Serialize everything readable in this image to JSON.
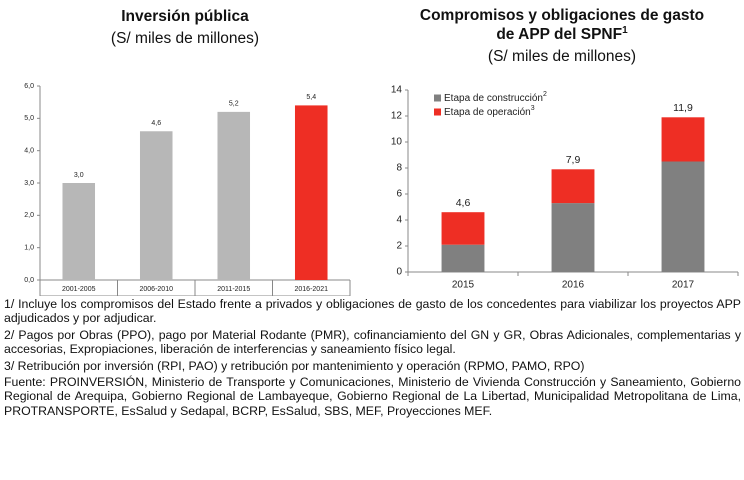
{
  "chart_data": [
    {
      "type": "bar",
      "title": [
        "Inversión pública"
      ],
      "subtitle": "(S/ miles de millones)",
      "categories": [
        "2001-2005",
        "2006-2010",
        "2011-2015",
        "2016-2021"
      ],
      "values": [
        3.0,
        4.6,
        5.2,
        5.4
      ],
      "value_labels": [
        "3,0",
        "4,6",
        "5,2",
        "5,4"
      ],
      "colors": [
        "#b7b7b7",
        "#b7b7b7",
        "#b7b7b7",
        "#ee2e24"
      ],
      "ylim": [
        0,
        6
      ],
      "yticks": [
        {
          "value": 0,
          "label": "0,0"
        },
        {
          "value": 1,
          "label": "1,0"
        },
        {
          "value": 2,
          "label": "2,0"
        },
        {
          "value": 3,
          "label": "3,0"
        },
        {
          "value": 4,
          "label": "4,0"
        },
        {
          "value": 5,
          "label": "5,0"
        },
        {
          "value": 6,
          "label": "6,0"
        }
      ],
      "grid": false
    },
    {
      "type": "stacked_bar",
      "title": [
        "Compromisos y obligaciones de gasto",
        "de APP del SPNF"
      ],
      "title_note": "1",
      "subtitle": "(S/ miles de millones)",
      "categories": [
        "2015",
        "2016",
        "2017"
      ],
      "series": [
        {
          "name": "Etapa de construcción",
          "note": "2",
          "color": "#808080",
          "values": [
            2.1,
            5.3,
            8.5
          ]
        },
        {
          "name": "Etapa de operación",
          "note": "3",
          "color": "#ee2e24",
          "values": [
            2.5,
            2.6,
            3.4
          ]
        }
      ],
      "totals": [
        4.6,
        7.9,
        11.9
      ],
      "total_labels": [
        "4,6",
        "7,9",
        "11,9"
      ],
      "ylim": [
        0,
        14
      ],
      "yticks": [
        0,
        2,
        4,
        6,
        8,
        10,
        12,
        14
      ],
      "grid": false,
      "legend": "top-left"
    }
  ],
  "notes": [
    "1/ Incluye los compromisos del Estado frente a privados y obligaciones de gasto de los concedentes para viabilizar los proyectos APP adjudicados y por adjudicar.",
    "2/ Pagos por Obras (PPO), pago por Material Rodante (PMR), cofinanciamiento del GN y GR, Obras Adicionales, complementarias y accesorias, Expropiaciones, liberación de interferencias y saneamiento físico legal.",
    "3/ Retribución por inversión (RPI, PAO) y retribución por mantenimiento y operación (RPMO, PAMO, RPO)",
    "Fuente: PROINVERSIÓN, Ministerio de Transporte y Comunicaciones, Ministerio de Vivienda Construcción y Saneamiento, Gobierno Regional de Arequipa, Gobierno Regional de Lambayeque, Gobierno Regional de La Libertad, Municipalidad Metropolitana de Lima, PROTRANSPORTE, EsSalud y Sedapal, BCRP, EsSalud, SBS, MEF, Proyecciones MEF."
  ]
}
